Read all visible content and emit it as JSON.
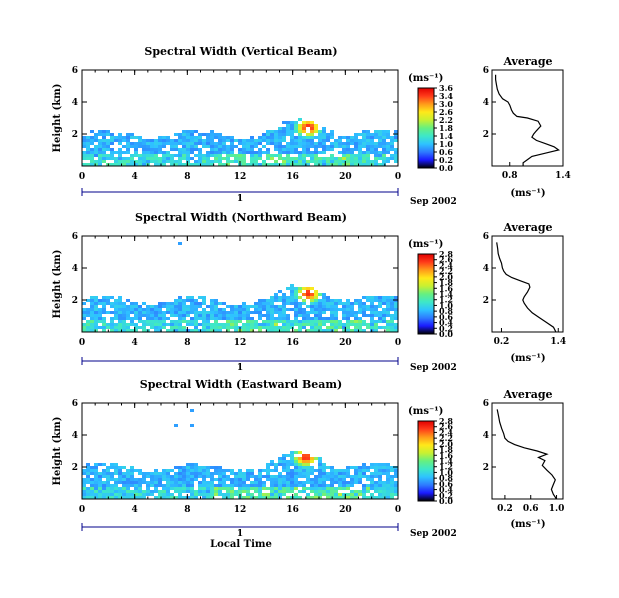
{
  "colors": {
    "background": "#ffffff",
    "colorbar_stops": [
      "#000000",
      "#1a1aff",
      "#2e7bff",
      "#2ec3ff",
      "#3ee8c8",
      "#66f080",
      "#c8f032",
      "#ffe81a",
      "#ff9a1a",
      "#ff3a1a",
      "#e00000"
    ]
  },
  "shared": {
    "xticks": [
      "0",
      "4",
      "8",
      "12",
      "16",
      "20",
      "0"
    ],
    "day_marker": "1",
    "date_label": "Sep 2002",
    "ylabel": "Height (km)",
    "yticks": [
      "2",
      "4",
      "6"
    ],
    "units": "(ms⁻¹)",
    "avg_title": "Average",
    "avg_xlabel": "(ms⁻¹)",
    "xlabel": "Local Time"
  },
  "chart_data": [
    {
      "type": "heatmap",
      "title": "Spectral Width (Vertical Beam)",
      "xlabel": "",
      "ylabel": "Height (km)",
      "xlim": [
        0,
        24
      ],
      "ylim": [
        0,
        6
      ],
      "colorbar_ticks": [
        "3.6",
        "3.4",
        "3.0",
        "2.6",
        "2.2",
        "1.8",
        "1.4",
        "1.0",
        "0.6",
        "0.2",
        "0.0"
      ],
      "colorbar_max": 3.6,
      "hotspot": {
        "time": 17.2,
        "height": 2.4,
        "value": 3.4
      }
    },
    {
      "type": "heatmap",
      "title": "Spectral Width (Northward Beam)",
      "xlabel": "",
      "ylabel": "Height (km)",
      "xlim": [
        0,
        24
      ],
      "ylim": [
        0,
        6
      ],
      "colorbar_ticks": [
        "2.8",
        "2.6",
        "2.4",
        "2.2",
        "2.0",
        "1.8",
        "1.6",
        "1.4",
        "1.2",
        "1.0",
        "0.8",
        "0.6",
        "0.4",
        "0.2",
        "0.0"
      ],
      "colorbar_max": 2.8,
      "hotspot": {
        "time": 17.2,
        "height": 2.4,
        "value": 2.6
      }
    },
    {
      "type": "heatmap",
      "title": "Spectral Width (Eastward Beam)",
      "xlabel": "Local Time",
      "ylabel": "Height (km)",
      "xlim": [
        0,
        24
      ],
      "ylim": [
        0,
        6
      ],
      "colorbar_ticks": [
        "2.8",
        "2.6",
        "2.4",
        "2.2",
        "2.0",
        "1.8",
        "1.6",
        "1.4",
        "1.2",
        "1.0",
        "0.8",
        "0.6",
        "0.4",
        "0.2",
        "0.0"
      ],
      "colorbar_max": 2.8,
      "hotspot": {
        "time": 17.0,
        "height": 2.6,
        "value": 2.6
      }
    },
    {
      "type": "line",
      "title": "Average",
      "xlabel": "(ms⁻¹)",
      "xticks": [
        "0.8",
        "1.4"
      ],
      "xlim": [
        0.6,
        1.4
      ],
      "ylim": [
        0,
        6
      ],
      "x": [
        0.95,
        0.95,
        1.0,
        1.05,
        1.2,
        1.35,
        1.3,
        1.2,
        1.1,
        1.05,
        1.07,
        1.1,
        1.15,
        1.12,
        1.0,
        0.88,
        0.84,
        0.82,
        0.8,
        0.78,
        0.72,
        0.68,
        0.66,
        0.65,
        0.64,
        0.64
      ],
      "y": [
        0.0,
        0.2,
        0.4,
        0.6,
        0.8,
        1.0,
        1.2,
        1.4,
        1.6,
        1.8,
        2.0,
        2.2,
        2.5,
        2.8,
        3.0,
        3.1,
        3.3,
        3.5,
        3.8,
        4.0,
        4.2,
        4.5,
        4.8,
        5.1,
        5.4,
        5.7
      ]
    },
    {
      "type": "line",
      "title": "Average",
      "xlabel": "(ms⁻¹)",
      "xticks": [
        "0.2",
        "1.4"
      ],
      "xlim": [
        0.0,
        1.5
      ],
      "ylim": [
        0,
        6
      ],
      "x": [
        1.35,
        1.3,
        1.15,
        1.0,
        0.85,
        0.75,
        0.68,
        0.65,
        0.68,
        0.75,
        0.8,
        0.78,
        0.6,
        0.42,
        0.3,
        0.25,
        0.22,
        0.2,
        0.16,
        0.13,
        0.12,
        0.1
      ],
      "y": [
        0.0,
        0.3,
        0.6,
        0.9,
        1.2,
        1.5,
        1.8,
        2.0,
        2.2,
        2.5,
        2.8,
        3.0,
        3.2,
        3.4,
        3.6,
        3.8,
        4.0,
        4.3,
        4.6,
        4.9,
        5.2,
        5.6
      ]
    },
    {
      "type": "line",
      "title": "Average",
      "xlabel": "(ms⁻¹)",
      "xticks": [
        "0.2",
        "0.6",
        "1.0"
      ],
      "xlim": [
        0.0,
        1.1
      ],
      "ylim": [
        0,
        6
      ],
      "x": [
        1.0,
        0.95,
        0.92,
        0.95,
        0.98,
        0.93,
        0.85,
        0.78,
        0.82,
        0.72,
        0.85,
        0.7,
        0.5,
        0.35,
        0.25,
        0.2,
        0.18,
        0.15,
        0.12,
        0.1,
        0.08
      ],
      "y": [
        0.0,
        0.3,
        0.6,
        0.9,
        1.2,
        1.5,
        1.8,
        2.1,
        2.4,
        2.6,
        2.8,
        3.0,
        3.2,
        3.4,
        3.6,
        3.8,
        4.1,
        4.4,
        4.8,
        5.2,
        5.6
      ]
    }
  ]
}
